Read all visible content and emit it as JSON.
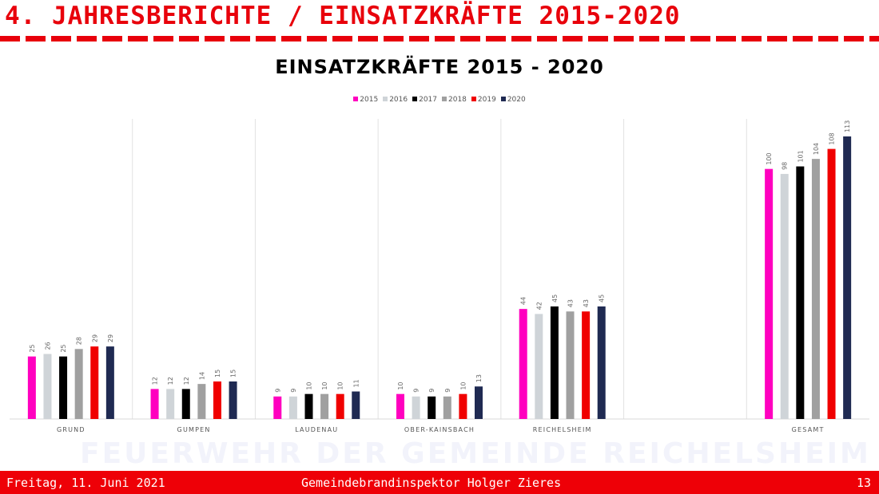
{
  "header": {
    "title": "4. JAHRESBERICHTE / EINSATZKRÄFTE 2015-2020"
  },
  "watermark": "FEUERWEHR DER GEMEINDE REICHELSHEIM",
  "footer": {
    "date": "Freitag, 11. Juni 2021",
    "author": "Gemeindebrandinspektor Holger Zieres",
    "page": "13"
  },
  "chart_data": {
    "type": "bar",
    "title": "EINSATZKRÄFTE 2015 - 2020",
    "xlabel": "",
    "ylabel": "",
    "ylim": [
      0,
      120
    ],
    "grid": false,
    "legend_position": "top",
    "categories": [
      "GRUND",
      "GUMPEN",
      "LAUDENAU",
      "OBER-KAINSBACH",
      "REICHELSHEIM",
      "",
      "GESAMT"
    ],
    "series": [
      {
        "name": "2015",
        "color": "#ff00bf",
        "values": [
          25,
          12,
          9,
          10,
          44,
          null,
          100
        ]
      },
      {
        "name": "2016",
        "color": "#cfd4d8",
        "values": [
          26,
          12,
          9,
          9,
          42,
          null,
          98
        ]
      },
      {
        "name": "2017",
        "color": "#000000",
        "values": [
          25,
          12,
          10,
          9,
          45,
          null,
          101
        ]
      },
      {
        "name": "2018",
        "color": "#a0a0a0",
        "values": [
          28,
          14,
          10,
          9,
          43,
          null,
          104
        ]
      },
      {
        "name": "2019",
        "color": "#f00000",
        "values": [
          29,
          15,
          10,
          10,
          43,
          null,
          108
        ]
      },
      {
        "name": "2020",
        "color": "#1f2a52",
        "values": [
          29,
          15,
          11,
          13,
          45,
          null,
          113
        ]
      }
    ]
  }
}
